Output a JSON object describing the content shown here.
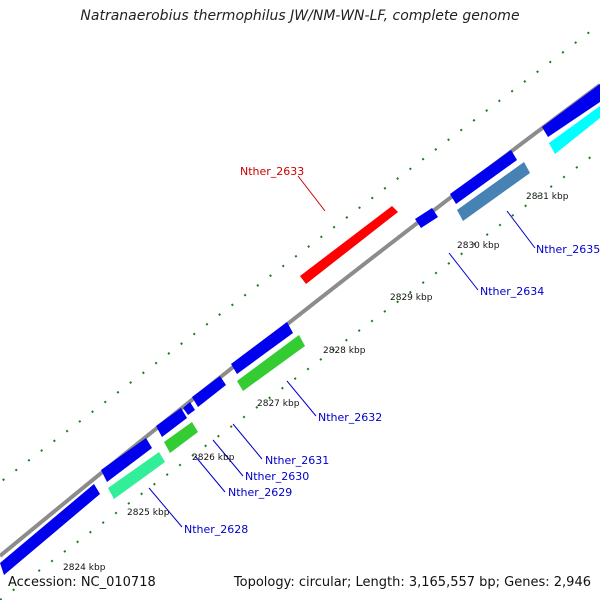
{
  "title": "Natranaerobius thermophilus JW/NM-WN-LF, complete genome",
  "footer": {
    "accession": "Accession: NC_010718",
    "stats": "Topology: circular; Length: 3,165,557 bp; Genes: 2,946"
  },
  "kbp_labels": [
    "2824 kbp",
    "2825 kbp",
    "2826 kbp",
    "2827 kbp",
    "2828 kbp",
    "2829 kbp",
    "2830 kbp",
    "2831 kbp"
  ],
  "gene_labels": {
    "g2628": "Nther_2628",
    "g2629": "Nther_2629",
    "g2630": "Nther_2630",
    "g2631": "Nther_2631",
    "g2632": "Nther_2632",
    "g2633": "Nther_2633",
    "g2634": "Nther_2634",
    "g2635": "Nther_2635"
  },
  "colors": {
    "backbone": "#8c8c8c",
    "cds_blue": "#0000ee",
    "gene_red": "#ff0000",
    "gene_green": "#33cc33",
    "gene_aqua": "#33ee99",
    "gene_steel": "#4682b4",
    "gene_cyan": "#00ffff",
    "tick_green": "#1a7a1a",
    "label_blue": "#0000cc",
    "label_red": "#cc0000"
  }
}
